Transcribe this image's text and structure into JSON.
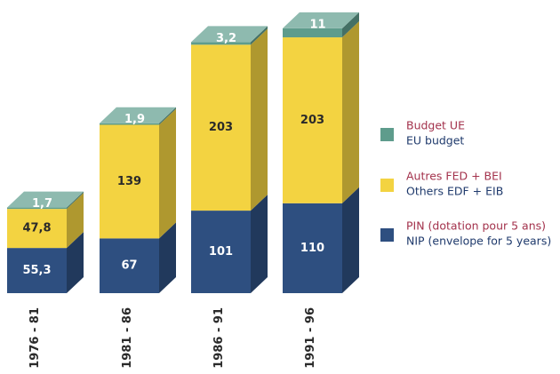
{
  "chart_data": {
    "type": "bar3d-stacked",
    "categories": [
      "1976 - 81",
      "1981 - 86",
      "1986 - 91",
      "1991 - 96"
    ],
    "series": [
      {
        "name": [
          "PIN (dotation pour 5 ans)",
          "NIP (envelope for 5 years)"
        ],
        "color": "#2e4f80",
        "values": [
          55.3,
          67,
          101,
          110
        ],
        "value_labels": [
          "55,3",
          "67",
          "101",
          "110"
        ]
      },
      {
        "name": [
          "Autres FED + BEI",
          "Others EDF + EIB"
        ],
        "color": "#f3d341",
        "values": [
          47.8,
          139,
          203,
          203
        ],
        "value_labels": [
          "47,8",
          "139",
          "203",
          "203"
        ]
      },
      {
        "name": [
          "Budget UE",
          "EU budget"
        ],
        "color": "#5e9c8c",
        "values": [
          1.7,
          1.9,
          3.2,
          11
        ],
        "value_labels": [
          "1,7",
          "1,9",
          "3,2",
          "11"
        ]
      }
    ]
  }
}
